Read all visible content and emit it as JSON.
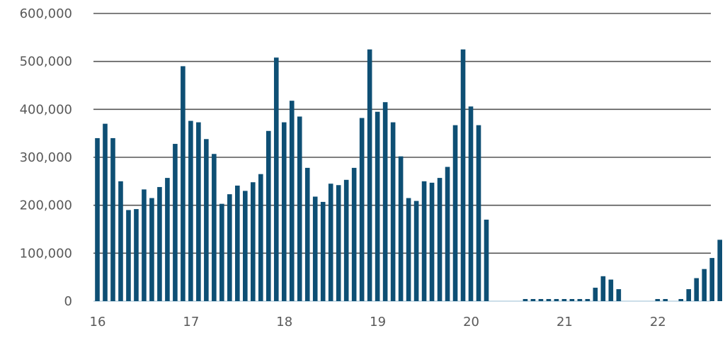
{
  "chart_data": {
    "type": "bar",
    "title": "",
    "xlabel": "",
    "ylabel": "",
    "ylim": [
      0,
      600000
    ],
    "grid": true,
    "bar_color": "#0e4f74",
    "grid_color": "#555555",
    "y_ticks": [
      0,
      100000,
      200000,
      300000,
      400000,
      500000,
      600000
    ],
    "y_tick_labels": [
      "0",
      "100,000",
      "200,000",
      "300,000",
      "400,000",
      "500,000",
      "600,000"
    ],
    "x_tick_labels": [
      "16",
      "17",
      "18",
      "19",
      "20",
      "21",
      "22"
    ],
    "x_tick_positions": [
      0,
      12,
      24,
      36,
      48,
      60,
      72
    ],
    "values": [
      340000,
      370000,
      340000,
      250000,
      190000,
      192000,
      233000,
      215000,
      238000,
      257000,
      328000,
      490000,
      376000,
      373000,
      338000,
      307000,
      203000,
      223000,
      241000,
      230000,
      248000,
      265000,
      355000,
      508000,
      373000,
      418000,
      385000,
      278000,
      218000,
      207000,
      245000,
      242000,
      253000,
      278000,
      382000,
      525000,
      395000,
      415000,
      373000,
      302000,
      215000,
      209000,
      250000,
      247000,
      257000,
      280000,
      367000,
      525000,
      406000,
      367000,
      170000,
      0,
      0,
      0,
      0,
      2000,
      2000,
      2000,
      2000,
      2000,
      2000,
      2000,
      2000,
      2000,
      28000,
      52000,
      45000,
      25000,
      0,
      0,
      0,
      0,
      2000,
      2000,
      0,
      2000,
      25000,
      48000,
      67000,
      90000,
      128000
    ]
  }
}
